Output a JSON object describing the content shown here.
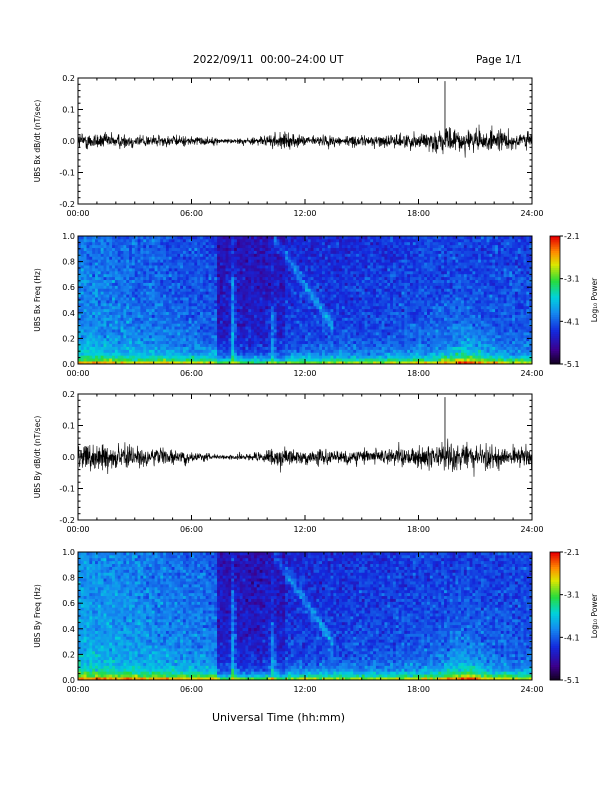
{
  "header": {
    "title": "2022/09/11  00:00–24:00 UT",
    "page": "Page 1/1"
  },
  "xlabel": "Universal Time (hh:mm)",
  "chart_data": [
    {
      "type": "line",
      "ylabel": "UBS Bx dB/dt (nT/sec)",
      "xlim": [
        0,
        24
      ],
      "ylim": [
        -0.2,
        0.2
      ],
      "x_ticks": [
        "00:00",
        "06:00",
        "12:00",
        "18:00",
        "24:00"
      ],
      "y_ticks": [
        "-0.2",
        "-0.1",
        "0.0",
        "0.1",
        "0.2"
      ],
      "envelope": {
        "hours": [
          0,
          1,
          2,
          3,
          4,
          5,
          6,
          7,
          7.5,
          8,
          9,
          10,
          10.5,
          11,
          12,
          13,
          14,
          15,
          16,
          17,
          18,
          19,
          19.4,
          20,
          21,
          22,
          23,
          24
        ],
        "amplitude": [
          0.022,
          0.02,
          0.018,
          0.017,
          0.014,
          0.013,
          0.012,
          0.01,
          0.006,
          0.006,
          0.008,
          0.012,
          0.022,
          0.018,
          0.012,
          0.014,
          0.013,
          0.013,
          0.014,
          0.017,
          0.02,
          0.026,
          0.03,
          0.028,
          0.027,
          0.025,
          0.023,
          0.022
        ]
      },
      "spike": {
        "hour": 19.4,
        "value": 0.19
      }
    },
    {
      "type": "heatmap",
      "ylabel": "UBS Bx Freq (Hz)",
      "xlim": [
        0,
        24
      ],
      "ylim": [
        0.0,
        1.0
      ],
      "x_ticks": [
        "00:00",
        "06:00",
        "12:00",
        "18:00",
        "24:00"
      ],
      "y_ticks": [
        "0.0",
        "0.2",
        "0.4",
        "0.6",
        "0.8",
        "1.0"
      ],
      "colorbar": {
        "label": "Log₁₀ Power",
        "min": -5.1,
        "max": -2.1,
        "ticks": [
          "-2.1",
          "-3.1",
          "-4.1",
          "-5.1"
        ]
      }
    },
    {
      "type": "line",
      "ylabel": "UBS By dB/dt (nT/sec)",
      "xlim": [
        0,
        24
      ],
      "ylim": [
        -0.2,
        0.2
      ],
      "x_ticks": [
        "00:00",
        "06:00",
        "12:00",
        "18:00",
        "24:00"
      ],
      "y_ticks": [
        "-0.2",
        "-0.1",
        "0.0",
        "0.1",
        "0.2"
      ],
      "envelope": {
        "hours": [
          0,
          1,
          2,
          3,
          4,
          5,
          6,
          7,
          7.5,
          8,
          9,
          10,
          10.5,
          11,
          12,
          13,
          14,
          15,
          16,
          17,
          18,
          19,
          19.4,
          20,
          21,
          22,
          23,
          24
        ],
        "amplitude": [
          0.035,
          0.032,
          0.028,
          0.024,
          0.02,
          0.016,
          0.012,
          0.008,
          0.005,
          0.005,
          0.009,
          0.016,
          0.025,
          0.02,
          0.016,
          0.018,
          0.017,
          0.017,
          0.018,
          0.02,
          0.024,
          0.03,
          0.034,
          0.03,
          0.03,
          0.028,
          0.026,
          0.025
        ]
      },
      "spike": {
        "hour": 19.4,
        "value": 0.19
      }
    },
    {
      "type": "heatmap",
      "ylabel": "UBS By Freq (Hz)",
      "xlim": [
        0,
        24
      ],
      "ylim": [
        0.0,
        1.0
      ],
      "x_ticks": [
        "00:00",
        "06:00",
        "12:00",
        "18:00",
        "24:00"
      ],
      "y_ticks": [
        "0.0",
        "0.2",
        "0.4",
        "0.6",
        "0.8",
        "1.0"
      ],
      "colorbar": {
        "label": "Log₁₀ Power",
        "min": -5.1,
        "max": -2.1,
        "ticks": [
          "-2.1",
          "-3.1",
          "-4.1",
          "-5.1"
        ]
      }
    }
  ]
}
